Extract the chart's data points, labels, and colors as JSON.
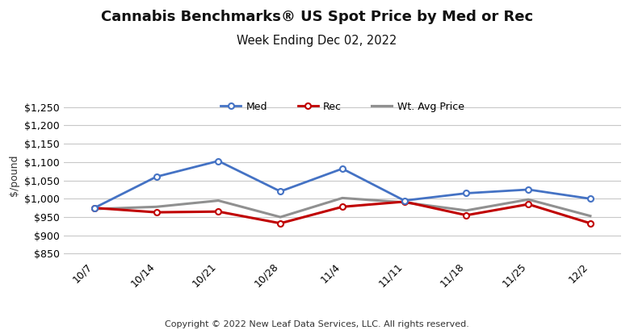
{
  "title": "Cannabis Benchmarks® US Spot Price by Med or Rec",
  "subtitle": "Week Ending Dec 02, 2022",
  "ylabel": "$/pound",
  "copyright": "Copyright © 2022 New Leaf Data Services, LLC. All rights reserved.",
  "x_labels": [
    "10/7",
    "10/14",
    "10/21",
    "10/28",
    "11/4",
    "11/11",
    "11/18",
    "11/25",
    "12/2"
  ],
  "med": [
    975,
    1060,
    1103,
    1020,
    1082,
    995,
    1015,
    1025,
    1000
  ],
  "rec": [
    975,
    963,
    965,
    933,
    978,
    992,
    955,
    985,
    933
  ],
  "wt_avg": [
    972,
    978,
    995,
    950,
    1002,
    990,
    968,
    998,
    953
  ],
  "med_color": "#4472C4",
  "rec_color": "#C00000",
  "wt_avg_color": "#909090",
  "bg_color": "#FFFFFF",
  "ylim": [
    840,
    1290
  ],
  "yticks": [
    850,
    900,
    950,
    1000,
    1050,
    1100,
    1150,
    1200,
    1250
  ],
  "title_fontsize": 13,
  "subtitle_fontsize": 10.5,
  "axis_fontsize": 9,
  "ylabel_fontsize": 9,
  "legend_fontsize": 9,
  "copyright_fontsize": 8
}
